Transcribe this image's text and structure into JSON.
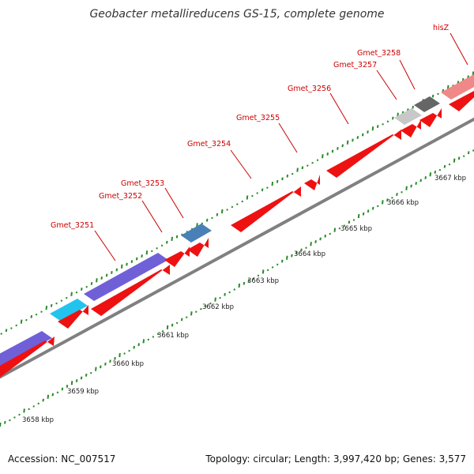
{
  "title": "Geobacter metallireducens GS-15, complete genome",
  "footer": {
    "accession": "Accession: NC_007517",
    "summary": "Topology: circular; Length: 3,997,420 bp; Genes: 3,577"
  },
  "gene_labels": [
    "Gmet_3251",
    "Gmet_3252",
    "Gmet_3253",
    "Gmet_3254",
    "Gmet_3255",
    "Gmet_3256",
    "Gmet_3257",
    "Gmet_3258",
    "hisZ"
  ],
  "kbp_labels": [
    "3658 kbp",
    "3659 kbp",
    "3660 kbp",
    "3661 kbp",
    "3662 kbp",
    "3663 kbp",
    "3664 kbp",
    "3665 kbp",
    "3666 kbp",
    "3667 kbp"
  ],
  "colors": {
    "cds": "#ee1111",
    "cog_purple": "#7060d8",
    "cog_cyan": "#22c4ee",
    "cog_steel": "#4a80b8",
    "cog_light_gray": "#c8c8c8",
    "cog_dark_gray": "#666666",
    "cog_pink": "#f08888",
    "backbone": "#808080",
    "gc_tick": "#2a8a2a",
    "label_red": "#cc0000"
  }
}
